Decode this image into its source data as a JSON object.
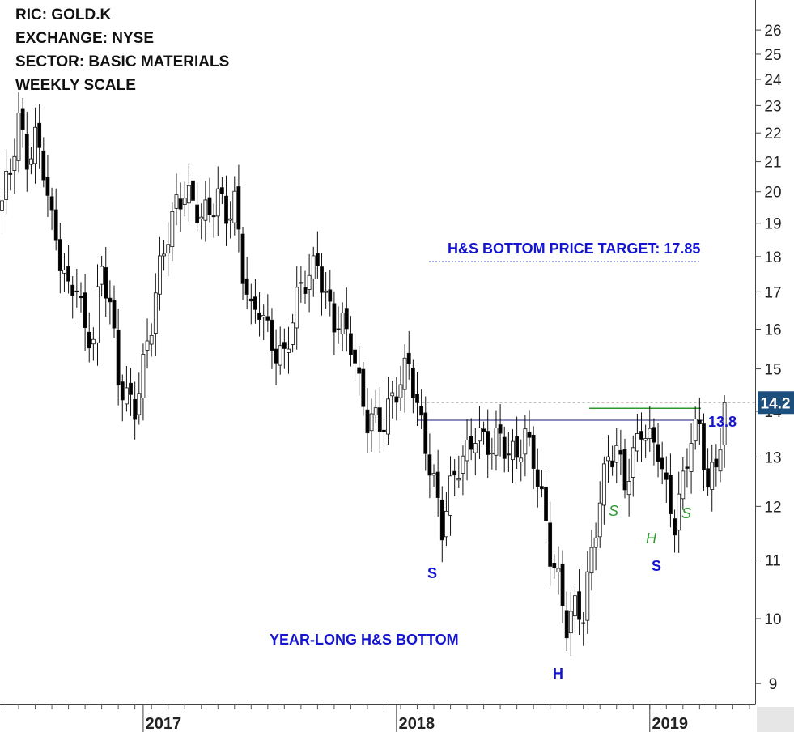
{
  "info": {
    "ric": "RIC: GOLD.K",
    "exchange": "EXCHANGE: NYSE",
    "sector": "SECTOR: BASIC MATERIALS",
    "scale": "WEEKLY SCALE"
  },
  "chart_data": {
    "type": "candlestick",
    "scale": "log",
    "ylim": [
      8.7,
      27.3
    ],
    "y_ticks": [
      9,
      10,
      11,
      12,
      13,
      14,
      15,
      16,
      17,
      18,
      19,
      20,
      21,
      22,
      23,
      24,
      25,
      26
    ],
    "x_ticks": [
      "2017",
      "2018",
      "2019"
    ],
    "last_price": "14.2",
    "neckline_value": "13.8",
    "neckline_label": "13.8",
    "target_value": 17.85,
    "target_label": "H&S BOTTOM PRICE TARGET: 17.85",
    "pattern_label": "YEAR-LONG H&S BOTTOM",
    "pattern_markers": {
      "left_shoulder": "S",
      "head": "H",
      "right_shoulder": "S",
      "small_left_shoulder": "S",
      "small_head": "H",
      "small_right_shoulder": "S"
    },
    "colors": {
      "candle_up": "#ffffff",
      "candle_down": "#000000",
      "annotation_blue": "#1515d0",
      "small_pattern_green": "#2e9a2e",
      "last_price_bg": "#1c4f7c"
    },
    "anchors": [
      [
        0,
        19.5
      ],
      [
        2,
        20.5
      ],
      [
        4,
        22.5
      ],
      [
        6,
        21.3
      ],
      [
        8,
        22.0
      ],
      [
        10,
        20.8
      ],
      [
        12,
        18.8
      ],
      [
        14,
        17.8
      ],
      [
        16,
        17.0
      ],
      [
        18,
        17.5
      ],
      [
        20,
        16.0
      ],
      [
        22,
        15.8
      ],
      [
        24,
        17.5
      ],
      [
        26,
        16.5
      ],
      [
        28,
        14.8
      ],
      [
        30,
        14.5
      ],
      [
        32,
        14.2
      ],
      [
        34,
        15.0
      ],
      [
        36,
        16.0
      ],
      [
        38,
        17.5
      ],
      [
        40,
        18.8
      ],
      [
        42,
        19.8
      ],
      [
        44,
        20.2
      ],
      [
        46,
        19.5
      ],
      [
        48,
        19.0
      ],
      [
        50,
        19.2
      ],
      [
        52,
        20.0
      ],
      [
        54,
        19.5
      ],
      [
        56,
        19.8
      ],
      [
        58,
        17.5
      ],
      [
        60,
        16.2
      ],
      [
        62,
        16.5
      ],
      [
        64,
        16.0
      ],
      [
        66,
        15.6
      ],
      [
        68,
        15.4
      ],
      [
        70,
        16.2
      ],
      [
        72,
        17.0
      ],
      [
        74,
        17.3
      ],
      [
        76,
        18.0
      ],
      [
        78,
        17.0
      ],
      [
        80,
        16.3
      ],
      [
        82,
        16.0
      ],
      [
        84,
        15.5
      ],
      [
        86,
        14.5
      ],
      [
        88,
        13.9
      ],
      [
        90,
        14.0
      ],
      [
        92,
        13.8
      ],
      [
        94,
        14.2
      ],
      [
        96,
        14.5
      ],
      [
        98,
        15.1
      ],
      [
        100,
        14.2
      ],
      [
        102,
        13.4
      ],
      [
        104,
        12.5
      ],
      [
        106,
        11.5
      ],
      [
        108,
        12.2
      ],
      [
        110,
        12.8
      ],
      [
        112,
        13.2
      ],
      [
        114,
        13.7
      ],
      [
        116,
        13.4
      ],
      [
        118,
        13.1
      ],
      [
        120,
        13.3
      ],
      [
        122,
        13.0
      ],
      [
        124,
        13.2
      ],
      [
        126,
        13.6
      ],
      [
        128,
        13.0
      ],
      [
        130,
        12.0
      ],
      [
        132,
        11.0
      ],
      [
        134,
        10.6
      ],
      [
        136,
        10.0
      ],
      [
        138,
        10.3
      ],
      [
        140,
        10.1
      ],
      [
        142,
        11.0
      ],
      [
        144,
        12.0
      ],
      [
        146,
        13.0
      ],
      [
        148,
        13.3
      ],
      [
        150,
        12.6
      ],
      [
        152,
        13.0
      ],
      [
        154,
        13.5
      ],
      [
        156,
        13.2
      ],
      [
        158,
        13.2
      ],
      [
        160,
        12.4
      ],
      [
        162,
        11.8
      ],
      [
        164,
        12.5
      ],
      [
        166,
        13.3
      ],
      [
        168,
        13.5
      ],
      [
        170,
        12.4
      ],
      [
        172,
        13.0
      ],
      [
        174,
        14.2
      ]
    ]
  }
}
